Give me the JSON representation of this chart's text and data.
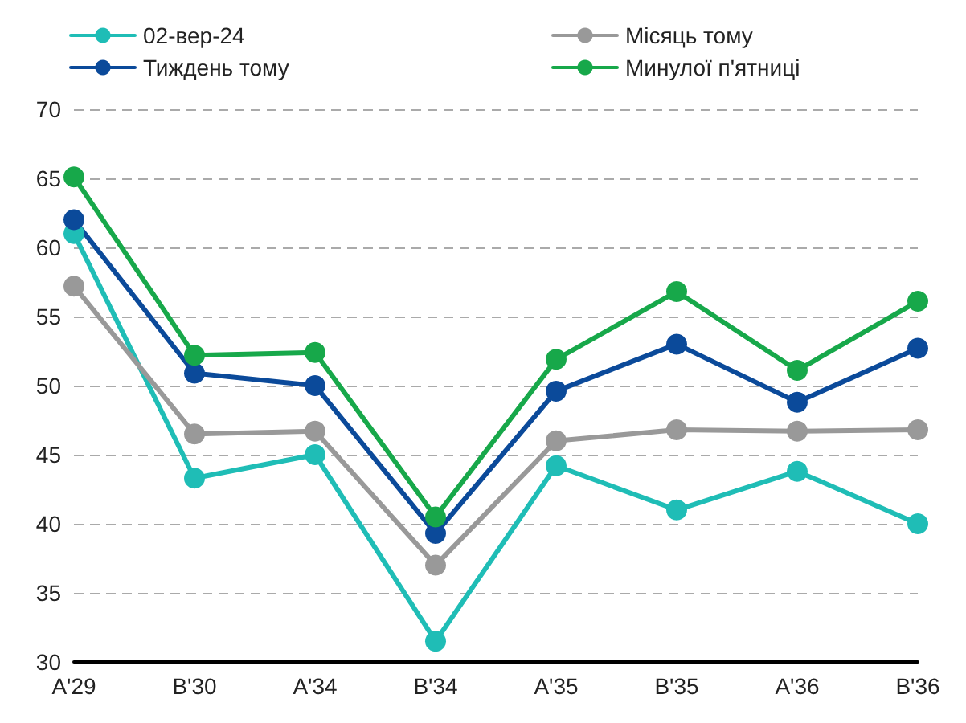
{
  "chart_data": {
    "type": "line",
    "categories": [
      "A'29",
      "B'30",
      "A'34",
      "B'34",
      "A'35",
      "B'35",
      "A'36",
      "B'36"
    ],
    "series": [
      {
        "name": "02-вер-24",
        "color": "#1fbdb6",
        "values": [
          61,
          43.3,
          45,
          31.5,
          44.2,
          41,
          43.8,
          40
        ]
      },
      {
        "name": "Місяць тому",
        "color": "#999999",
        "values": [
          57.2,
          46.5,
          46.7,
          37,
          46,
          46.8,
          46.7,
          46.8
        ]
      },
      {
        "name": "Тиждень тому",
        "color": "#0b4a9a",
        "values": [
          62,
          50.9,
          50,
          39.3,
          49.6,
          53,
          48.8,
          52.7
        ]
      },
      {
        "name": "Минулої п'ятниці",
        "color": "#17a84a",
        "values": [
          65.1,
          52.2,
          52.4,
          40.5,
          51.9,
          56.8,
          51.1,
          56.1
        ]
      }
    ],
    "ylim": [
      30,
      70
    ],
    "yticks": [
      30,
      35,
      40,
      45,
      50,
      55,
      60,
      65,
      70
    ],
    "grid": "y",
    "legend": "top",
    "marker": "circle",
    "line_style": "solid"
  }
}
